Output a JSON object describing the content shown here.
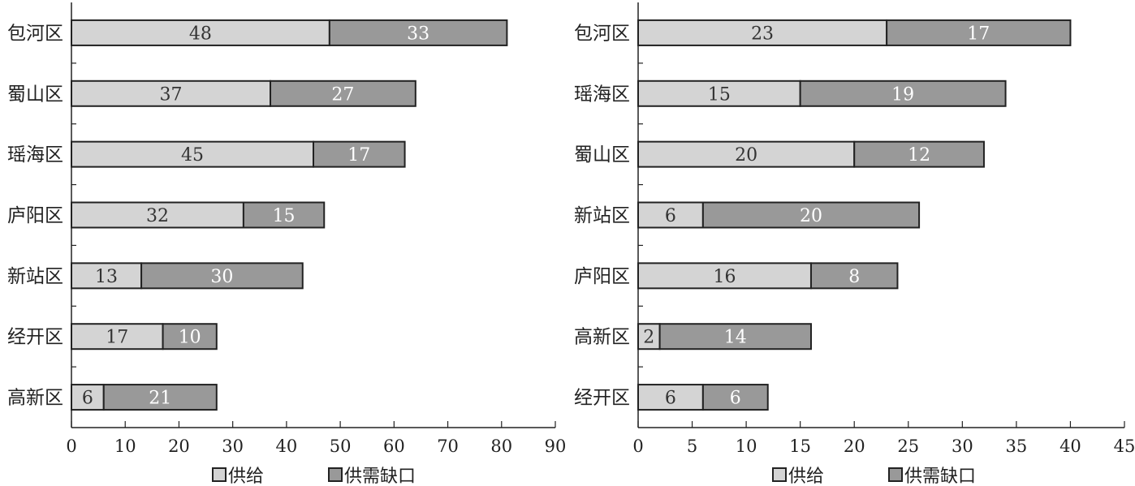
{
  "chart_data": [
    {
      "type": "bar",
      "orientation": "horizontal",
      "stacked": true,
      "categories": [
        "包河区",
        "蜀山区",
        "瑶海区",
        "庐阳区",
        "新站区",
        "经开区",
        "高新区"
      ],
      "series": [
        {
          "name": "供给",
          "values": [
            48,
            37,
            45,
            32,
            13,
            17,
            6
          ],
          "color": "#d4d4d4"
        },
        {
          "name": "供需缺口",
          "values": [
            33,
            27,
            17,
            15,
            30,
            10,
            21
          ],
          "color": "#999999"
        }
      ],
      "xlim": [
        0,
        90
      ],
      "xticks": [
        0,
        10,
        20,
        30,
        40,
        50,
        60,
        70,
        80,
        90
      ],
      "legend": "bottom"
    },
    {
      "type": "bar",
      "orientation": "horizontal",
      "stacked": true,
      "categories": [
        "包河区",
        "瑶海区",
        "蜀山区",
        "新站区",
        "庐阳区",
        "高新区",
        "经开区"
      ],
      "series": [
        {
          "name": "供给",
          "values": [
            23,
            15,
            20,
            6,
            16,
            2,
            6
          ],
          "color": "#d4d4d4"
        },
        {
          "name": "供需缺口",
          "values": [
            17,
            19,
            12,
            20,
            8,
            14,
            6
          ],
          "color": "#999999"
        }
      ],
      "xlim": [
        0,
        45
      ],
      "xticks": [
        0,
        5,
        10,
        15,
        20,
        25,
        30,
        35,
        40,
        45
      ],
      "legend": "bottom"
    }
  ]
}
